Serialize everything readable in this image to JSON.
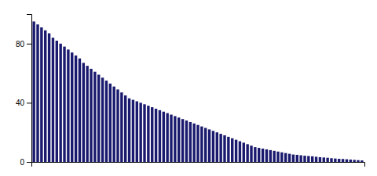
{
  "chart_data": {
    "type": "bar",
    "categories": [
      null,
      null,
      null,
      null,
      null,
      null,
      null,
      null,
      null,
      null,
      null,
      null,
      null,
      null,
      null,
      null,
      null,
      null,
      null,
      null,
      null,
      null,
      null,
      null,
      null,
      null,
      null,
      null,
      null,
      null,
      null,
      null,
      null,
      null,
      null,
      null,
      null,
      null,
      null,
      null,
      null,
      null,
      null,
      null,
      null,
      null,
      null,
      null,
      null,
      null,
      null,
      null,
      null,
      null,
      null,
      null,
      null,
      null,
      null,
      null,
      null,
      null,
      null,
      null,
      null,
      null,
      null,
      null,
      null,
      null,
      null,
      null,
      null,
      null,
      null,
      null,
      null,
      null,
      null,
      null,
      null,
      null,
      null,
      null,
      null,
      null,
      null
    ],
    "values": [
      95,
      93,
      91,
      89,
      87,
      84,
      82,
      80,
      78,
      76,
      74,
      72,
      70,
      67,
      65,
      63,
      61,
      59,
      57,
      55,
      53,
      51,
      49,
      47,
      45,
      43,
      42,
      41,
      40,
      39,
      38,
      37,
      36,
      35,
      34,
      33,
      32,
      31,
      30,
      29,
      28,
      27,
      26,
      25,
      24,
      23,
      22,
      21,
      20,
      19,
      18,
      17,
      16,
      15,
      14,
      13,
      12,
      11,
      10,
      9.5,
      9,
      8.5,
      8,
      7.5,
      7,
      6.5,
      6,
      5.5,
      5,
      4.8,
      4.5,
      4.2,
      4,
      3.8,
      3.5,
      3.2,
      3,
      2.8,
      2.5,
      2.3,
      2.1,
      2,
      1.8,
      1.6,
      1.4,
      1.2,
      1
    ],
    "color": "#1a1a6e",
    "ylim": [
      0,
      100
    ],
    "yticks": [
      0,
      40,
      80
    ],
    "grid": false,
    "tick_labels": "y"
  }
}
